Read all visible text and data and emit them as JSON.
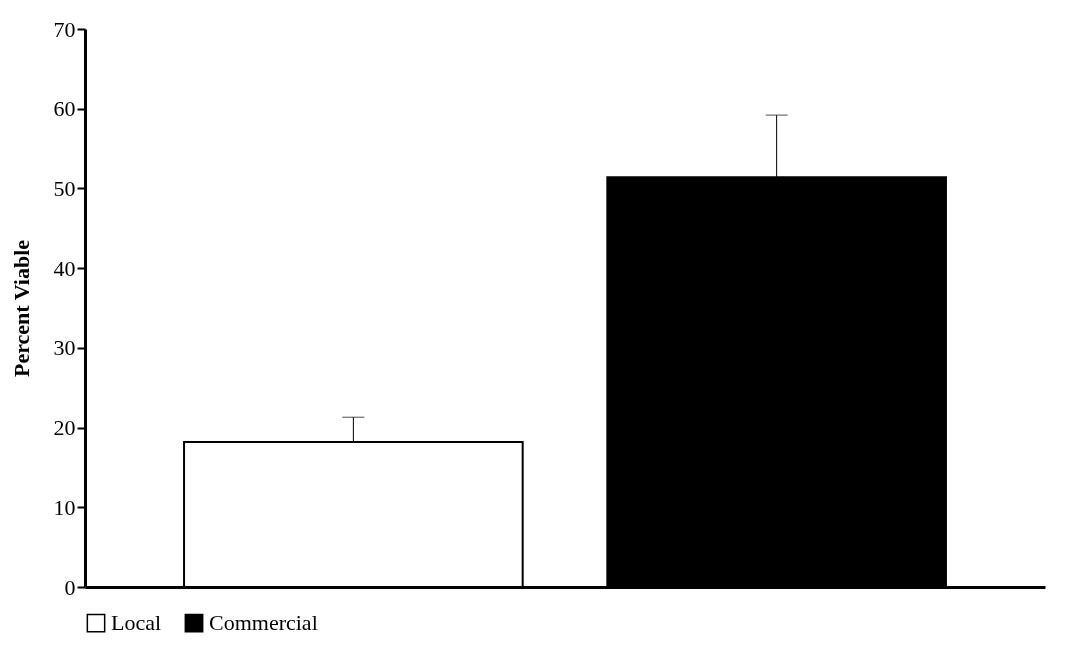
{
  "chart_data": {
    "type": "bar",
    "ylabel": "Percent Viable",
    "categories": [
      null
    ],
    "series": [
      {
        "name": "Local",
        "color": "#ffffff",
        "values": [
          18.2
        ],
        "errors": [
          [
            18.2,
            21.3
          ]
        ]
      },
      {
        "name": "Commercial",
        "color": "#000000",
        "values": [
          51.4
        ],
        "errors": [
          [
            51.4,
            59.2
          ]
        ]
      }
    ],
    "ylim": [
      0,
      70
    ],
    "yticks": [
      0,
      10,
      20,
      30,
      40,
      50,
      60,
      70
    ],
    "grid": false,
    "legend": "bottom"
  }
}
